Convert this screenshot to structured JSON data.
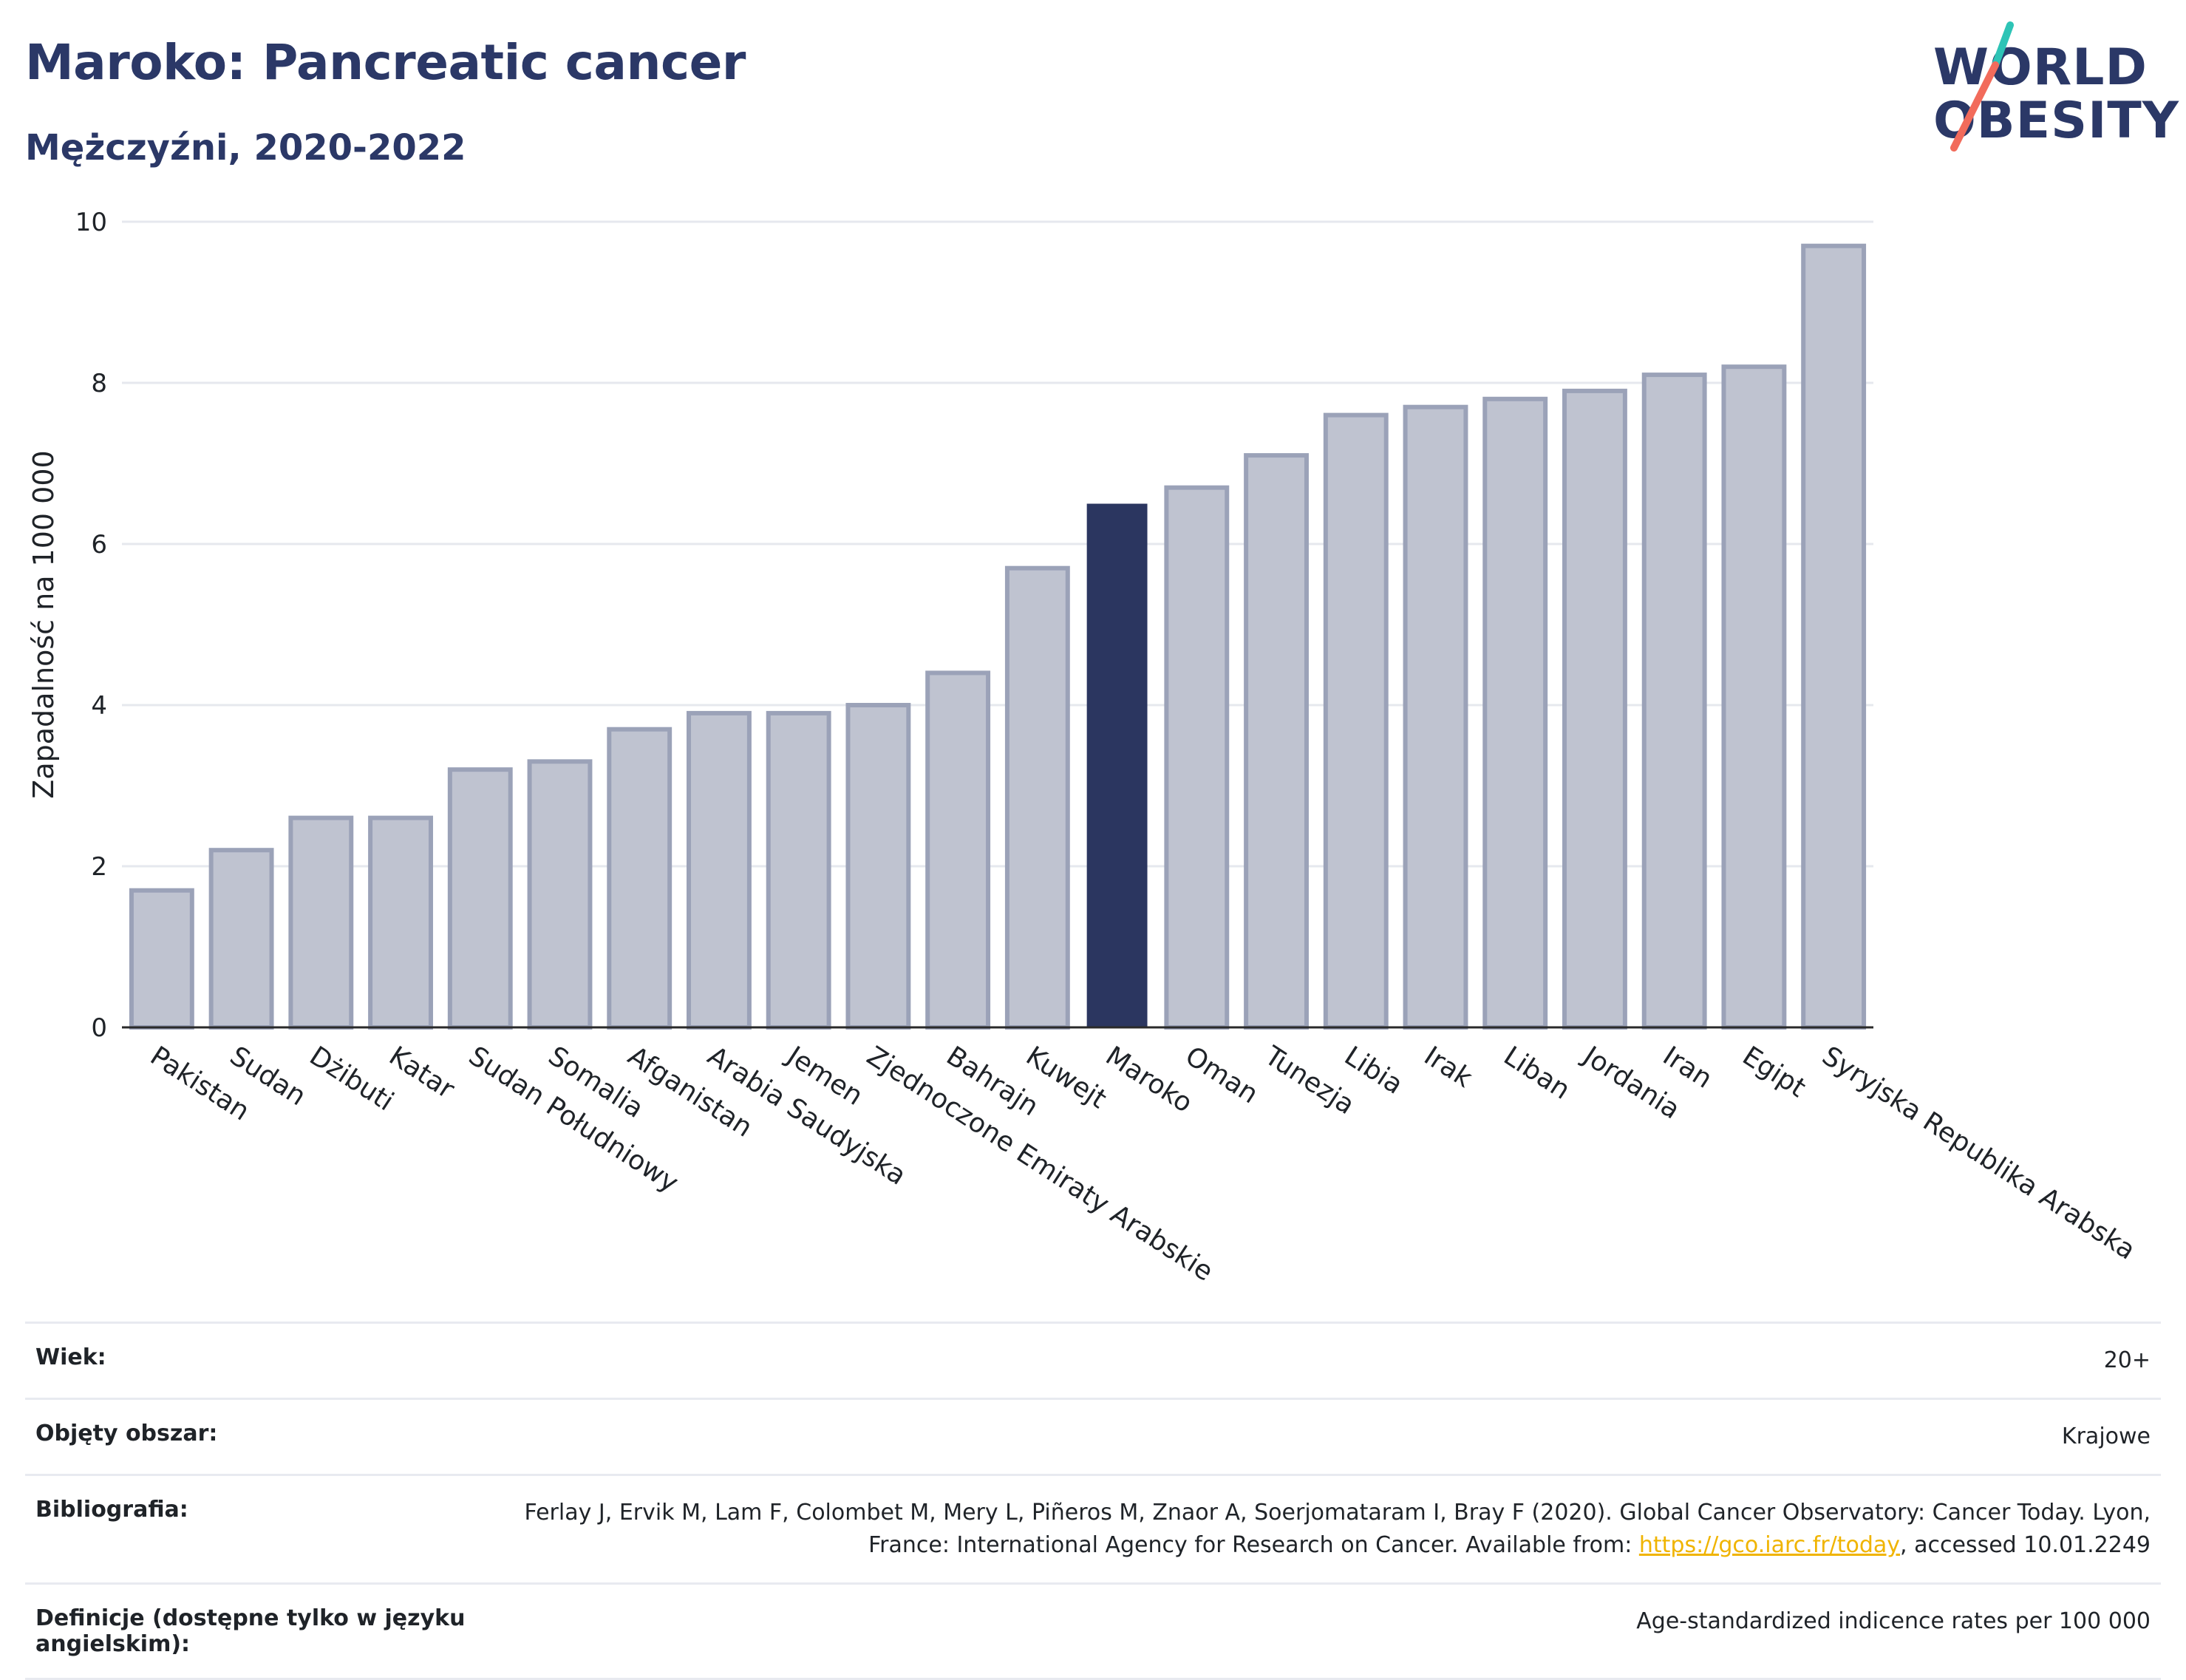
{
  "header": {
    "title": "Maroko: Pancreatic cancer",
    "subtitle": "Mężczyźni, 2020-2022"
  },
  "logo": {
    "line1": "WORLD",
    "line2": "OBESITY",
    "colors": {
      "text": "#2b3867",
      "slash_top": "#2ec4b6",
      "slash_bottom": "#f26b5b"
    }
  },
  "chart_data": {
    "type": "bar",
    "ylabel": "Zapadalność na 100 000",
    "xlabel": "",
    "ylim": [
      0,
      10
    ],
    "yticks": [
      0,
      2,
      4,
      6,
      8,
      10
    ],
    "grid": true,
    "highlight": "Maroko",
    "colors": {
      "bar": "#bfc3d0",
      "bar_border": "#9ba2b8",
      "highlight": "#2b3660",
      "grid": "#e6e8ee",
      "axis": "#2a2a2a"
    },
    "categories": [
      "Pakistan",
      "Sudan",
      "Dżibuti",
      "Katar",
      "Sudan Południowy",
      "Somalia",
      "Afganistan",
      "Arabia Saudyjska",
      "Jemen",
      "Zjednoczone Emiraty Arabskie",
      "Bahrajn",
      "Kuwejt",
      "Maroko",
      "Oman",
      "Tunezja",
      "Libia",
      "Irak",
      "Liban",
      "Jordania",
      "Iran",
      "Egipt",
      "Syryjska Republika Arabska"
    ],
    "values": [
      1.7,
      2.2,
      2.6,
      2.6,
      3.2,
      3.3,
      3.7,
      3.9,
      3.9,
      4.0,
      4.4,
      5.7,
      6.5,
      6.7,
      7.1,
      7.6,
      7.7,
      7.8,
      7.9,
      8.1,
      8.2,
      9.7
    ]
  },
  "info": {
    "age_label": "Wiek:",
    "age_value": "20+",
    "coverage_label": "Objęty obszar:",
    "coverage_value": "Krajowe",
    "bibliography_label": "Bibliografia:",
    "bibliography_text": "Ferlay J, Ervik M, Lam F, Colombet M, Mery L, Piñeros M, Znaor A, Soerjomataram I, Bray F (2020). Global Cancer Observatory: Cancer Today. Lyon, France: International Agency for Research on Cancer. Available from: ",
    "bibliography_link": "https://gco.iarc.fr/today",
    "bibliography_suffix": ", accessed 10.01.2249",
    "definitions_label": "Definicje (dostępne tylko w języku angielskim):",
    "definitions_value": "Age-standardized indicence rates per 100 000"
  }
}
